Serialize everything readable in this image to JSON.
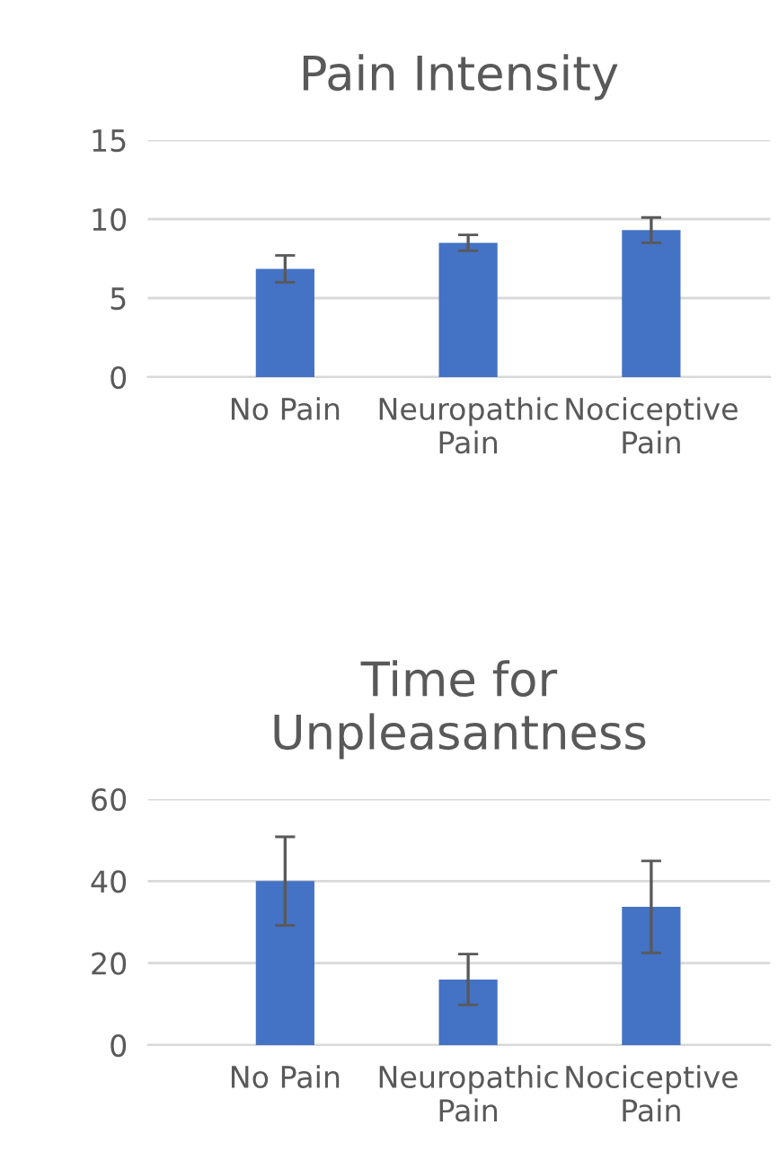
{
  "chart_data": [
    {
      "type": "bar",
      "title": "Pain Intensity",
      "categories": [
        "No Pain",
        "Neuropathic\nPain",
        "Nociceptive\nPain"
      ],
      "series": [
        {
          "color": "#4472c4",
          "values": [
            6.85,
            8.5,
            9.3
          ],
          "errors": [
            0.85,
            0.5,
            0.8
          ]
        }
      ],
      "ylim": [
        0,
        15
      ],
      "yticks": [
        0,
        5,
        10,
        15
      ],
      "grid": "y"
    },
    {
      "type": "bar",
      "title": "Time for\nUnpleasantness",
      "categories": [
        "No Pain",
        "Neuropathic\nPain",
        "Nociceptive\nPain"
      ],
      "series": [
        {
          "color": "#4472c4",
          "values": [
            40,
            16,
            33.7
          ],
          "errors": [
            10.8,
            6.2,
            11.2
          ]
        }
      ],
      "ylim": [
        0,
        60
      ],
      "yticks": [
        0,
        20,
        40,
        60
      ],
      "grid": "y"
    }
  ]
}
